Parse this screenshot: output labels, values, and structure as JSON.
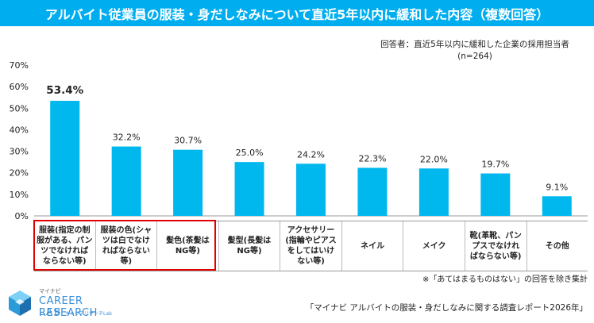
{
  "colors": {
    "title_bg": "#00aeef",
    "bar": "#00b7ee",
    "highlight": "#e00000",
    "axis": "#999999"
  },
  "respondent": {
    "line1": "回答者：直近5年以内に緩和した企業の採用担当者",
    "line2": "(n=264)"
  },
  "footnote": "※「あてはまるものはない」の回答を除き集計",
  "source": "「マイナビ アルバイトの服装・身だしなみに関する調査レポート2026年」",
  "logo": {
    "mini": "マイナビ",
    "main": "CAREER RESEARCH",
    "lab": "LAB",
    "sub": "キャリアリサーチLab",
    "icon": "cube-logo-icon"
  },
  "chart_data": {
    "type": "bar",
    "title": "アルバイト従業員の服装・身だしなみについて直近5年以内に緩和した内容（複数回答）",
    "categories": [
      "服装(指定の制\n服がある、パン\nツでなければ\nならない等)",
      "服装の色(シャ\nツは白でなけ\nればならない\n等)",
      "髪色(茶髪は\nNG等)",
      "髪型(長髪は\nNG等)",
      "アクセサリー\n(指輪やピアス\nをしてはいけ\nない等)",
      "ネイル",
      "メイク",
      "靴(革靴、パン\nプスでなけれ\nばならない等)",
      "その他"
    ],
    "values": [
      53.4,
      32.2,
      30.7,
      25.0,
      24.2,
      22.3,
      22.0,
      19.7,
      9.1
    ],
    "value_labels": [
      "53.4%",
      "32.2%",
      "30.7%",
      "25.0%",
      "24.2%",
      "22.3%",
      "22.0%",
      "19.7%",
      "9.1%"
    ],
    "highlighted_index": 0,
    "highlighted_categories": [
      0,
      1,
      2
    ],
    "ylim": [
      0,
      70
    ],
    "yticks": [
      0,
      10,
      20,
      30,
      40,
      50,
      60,
      70
    ],
    "ytick_labels": [
      "0%",
      "10%",
      "20%",
      "30%",
      "40%",
      "50%",
      "60%",
      "70%"
    ],
    "xlabel": "",
    "ylabel": "",
    "grid": false
  }
}
